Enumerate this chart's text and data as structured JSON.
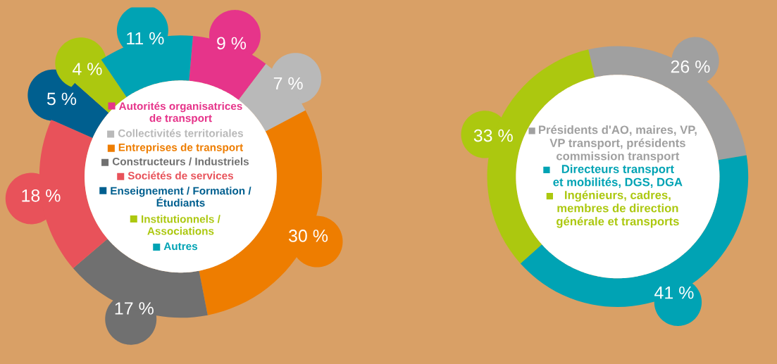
{
  "chart_data": [
    {
      "type": "donut",
      "categories": [
        "Autorités organisatrices\nde transport",
        "Collectivités territoriales",
        "Entreprises de transport",
        "Constructeurs / Industriels",
        "Sociétés de services",
        "Enseignement / Formation /\nÉtudiants",
        "Institutionnels /\nAssociations",
        "Autres"
      ],
      "values": [
        9,
        7,
        30,
        17,
        18,
        5,
        4,
        11
      ],
      "colors": [
        "#e6348a",
        "#b9b9b9",
        "#ee7d00",
        "#707070",
        "#e8525a",
        "#005f8f",
        "#acc80f",
        "#00a3b4"
      ],
      "value_labels": [
        "9 %",
        "7 %",
        "30 %",
        "17 %",
        "18 %",
        "5 %",
        "4 %",
        "11 %"
      ],
      "legend": "center"
    },
    {
      "type": "donut",
      "categories": [
        "Présidents d'AO, maires, VP,\nVP transport, présidents\ncommission transport",
        "Directeurs transport\net mobilités, DGS, DGA",
        "Ingénieurs, cadres,\nmembres de direction\ngénérale et transports"
      ],
      "values": [
        26,
        41,
        33
      ],
      "colors": [
        "#a0a0a0",
        "#00a3b4",
        "#acc80f"
      ],
      "value_labels": [
        "26 %",
        "41 %",
        "33 %"
      ],
      "legend": "center"
    }
  ]
}
